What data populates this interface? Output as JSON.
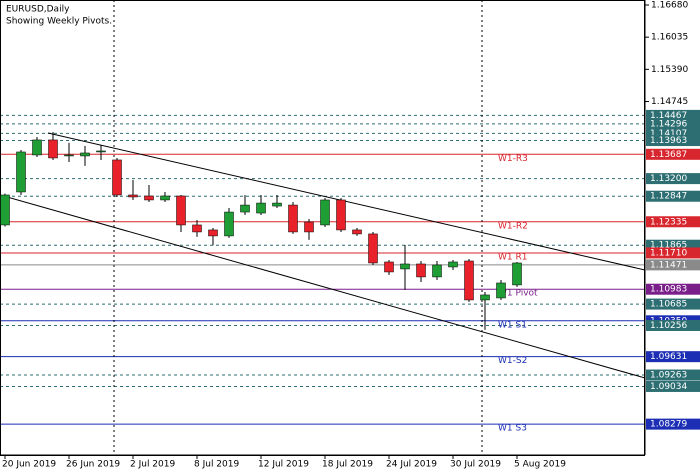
{
  "chart_data": {
    "type": "candlestick",
    "title": "EURUSD,Daily",
    "subtitle": "Showing Weekly Pivots.",
    "categories": [
      "20 Jun 2019",
      null,
      null,
      null,
      "26 Jun 2019",
      null,
      null,
      null,
      "2 Jul 2019",
      null,
      null,
      null,
      "8 Jul 2019",
      null,
      null,
      null,
      "12 Jul 2019",
      null,
      null,
      null,
      "18 Jul 2019",
      null,
      null,
      null,
      "24 Jul 2019",
      null,
      null,
      null,
      "30 Jul 2019",
      null,
      null,
      null,
      "5 Aug 2019"
    ],
    "open": [
      1.12271,
      1.12932,
      1.13674,
      1.13975,
      1.13654,
      1.13654,
      1.13734,
      1.13574,
      1.12872,
      1.12852,
      1.12772,
      1.12852,
      1.12271,
      1.12171,
      1.12051,
      1.1253,
      1.1251,
      1.1265,
      1.1267,
      1.12331,
      1.12271,
      1.12772,
      1.12171,
      1.12091,
      1.11529,
      1.11389,
      1.11489,
      1.11229,
      1.11429,
      1.11549,
      1.10768,
      1.10808,
      1.11069
    ],
    "high": [
      1.129,
      1.13774,
      1.14035,
      1.14135,
      1.13915,
      1.13855,
      1.13875,
      1.13614,
      1.13173,
      1.13073,
      1.12932,
      1.12872,
      1.12371,
      1.12211,
      1.12611,
      1.12872,
      1.12872,
      1.12872,
      1.1273,
      1.12391,
      1.12812,
      1.12812,
      1.12211,
      1.12131,
      1.11569,
      1.1187,
      1.11549,
      1.11549,
      1.11569,
      1.11589,
      1.10928,
      1.11168,
      1.11529
    ],
    "low": [
      1.1224,
      1.12872,
      1.13634,
      1.13574,
      1.13534,
      1.13454,
      1.13574,
      1.12832,
      1.12772,
      1.12732,
      1.12732,
      1.12131,
      1.12031,
      1.11864,
      1.12011,
      1.1247,
      1.1247,
      1.1261,
      1.12091,
      1.11971,
      1.12231,
      1.12131,
      1.12051,
      1.11469,
      1.11269,
      1.10969,
      1.11128,
      1.11168,
      1.11369,
      1.10728,
      1.10167,
      1.10768,
      1.11029
    ],
    "close": [
      1.12872,
      1.13734,
      1.13975,
      1.13614,
      1.13674,
      1.13714,
      1.13754,
      1.12872,
      1.12832,
      1.12772,
      1.12852,
      1.12271,
      1.12131,
      1.12051,
      1.1253,
      1.1267,
      1.1271,
      1.1271,
      1.12131,
      1.12131,
      1.12772,
      1.12171,
      1.12091,
      1.11509,
      1.11329,
      1.11489,
      1.11229,
      1.11469,
      1.11529,
      1.10768,
      1.10868,
      1.11108,
      1.11509
    ],
    "up_color": "#1e9e34",
    "down_color": "#e8212b",
    "ylim": [
      1.0766,
      1.1678
    ],
    "yticks": [
      {
        "value": 1.1668,
        "label": "1.16680"
      },
      1.16035,
      {
        "value": 1.1539,
        "label": "1.15390"
      },
      1.14745
    ],
    "levels": [
      {
        "value": 1.14467,
        "color": "#2c6e72",
        "line": "dashed"
      },
      {
        "value": 1.14296,
        "color": "#2c6e72",
        "line": "dashed"
      },
      {
        "value": 1.14107,
        "color": "#2c6e72",
        "line": "dashed"
      },
      {
        "value": 1.13963,
        "color": "#2c6e72",
        "line": "dashed"
      },
      {
        "value": 1.13687,
        "color": "#d8262e",
        "line": "solid",
        "name": "W1-R3"
      },
      {
        "value": {
          "value": 1.132,
          "label": "1.13200"
        },
        "color": "#2c6e72",
        "line": "dashed"
      },
      {
        "value": 1.12847,
        "color": "#2c6e72",
        "line": "dashed"
      },
      {
        "value": 1.12335,
        "color": "#d8262e",
        "line": "solid",
        "name": "W1-R2"
      },
      {
        "value": 1.11865,
        "color": "#2c6e72",
        "line": "dashed"
      },
      {
        "value": {
          "value": 1.1171,
          "label": "1.11710"
        },
        "color": "#d8262e",
        "line": "solid",
        "name": "W1 R1"
      },
      {
        "value": 1.11471,
        "color": "#8a8a8a",
        "line": "solid"
      },
      {
        "value": 1.10983,
        "color": "#7a1f8a",
        "line": "solid",
        "name": "W1 Pivot"
      },
      {
        "value": 1.10685,
        "color": "#2c6e72",
        "line": "dashed"
      },
      {
        "value": {
          "value": 1.1035,
          "label": "1.10350"
        },
        "color": "#1c2fb4",
        "line": "solid",
        "name": "W1 S1"
      },
      {
        "value": 1.10256,
        "color": "#2c6e72",
        "line": "dashed"
      },
      {
        "value": 1.09631,
        "color": "#1c2fb4",
        "line": "solid",
        "name": "W1-S2"
      },
      {
        "value": 1.09263,
        "color": "#2c6e72",
        "line": "dashed"
      },
      {
        "value": 1.09034,
        "color": "#2c6e72",
        "line": "dashed"
      },
      {
        "value": 1.08279,
        "color": "#1c2fb4",
        "line": "solid",
        "name": "W1 S3"
      }
    ]
  }
}
